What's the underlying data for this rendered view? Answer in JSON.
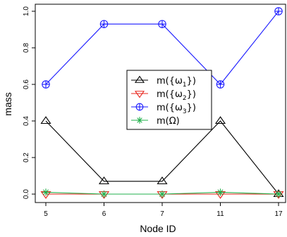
{
  "chart_data": {
    "type": "line",
    "title": "",
    "xlabel": "Node ID",
    "ylabel": "mass",
    "categories": [
      "5",
      "6",
      "7",
      "11",
      "17"
    ],
    "ylim": [
      0,
      1
    ],
    "yticks": [
      "0.0",
      "0.2",
      "0.4",
      "0.6",
      "0.8",
      "1.0"
    ],
    "legend_position": "center-right",
    "series": [
      {
        "name": "m({ω1})",
        "name_main": "m({ω",
        "name_sub": "1",
        "name_tail": "})",
        "marker": "triangle-up",
        "color": "#000000",
        "values": [
          0.4,
          0.07,
          0.07,
          0.4,
          0.0
        ]
      },
      {
        "name": "m({ω2})",
        "name_main": "m({ω",
        "name_sub": "2",
        "name_tail": "})",
        "marker": "triangle-down",
        "color": "#e8241c",
        "values": [
          0.0,
          0.0,
          0.0,
          0.0,
          0.0
        ]
      },
      {
        "name": "m({ω3})",
        "name_main": "m({ω",
        "name_sub": "3",
        "name_tail": "})",
        "marker": "circle-plus",
        "color": "#1a1aff",
        "values": [
          0.6,
          0.93,
          0.93,
          0.6,
          1.0
        ]
      },
      {
        "name": "m(Ω)",
        "name_main": "m(Ω)",
        "name_sub": "",
        "name_tail": "",
        "marker": "asterisk",
        "color": "#22b14c",
        "values": [
          0.01,
          0.0,
          0.0,
          0.01,
          0.0
        ]
      }
    ]
  }
}
